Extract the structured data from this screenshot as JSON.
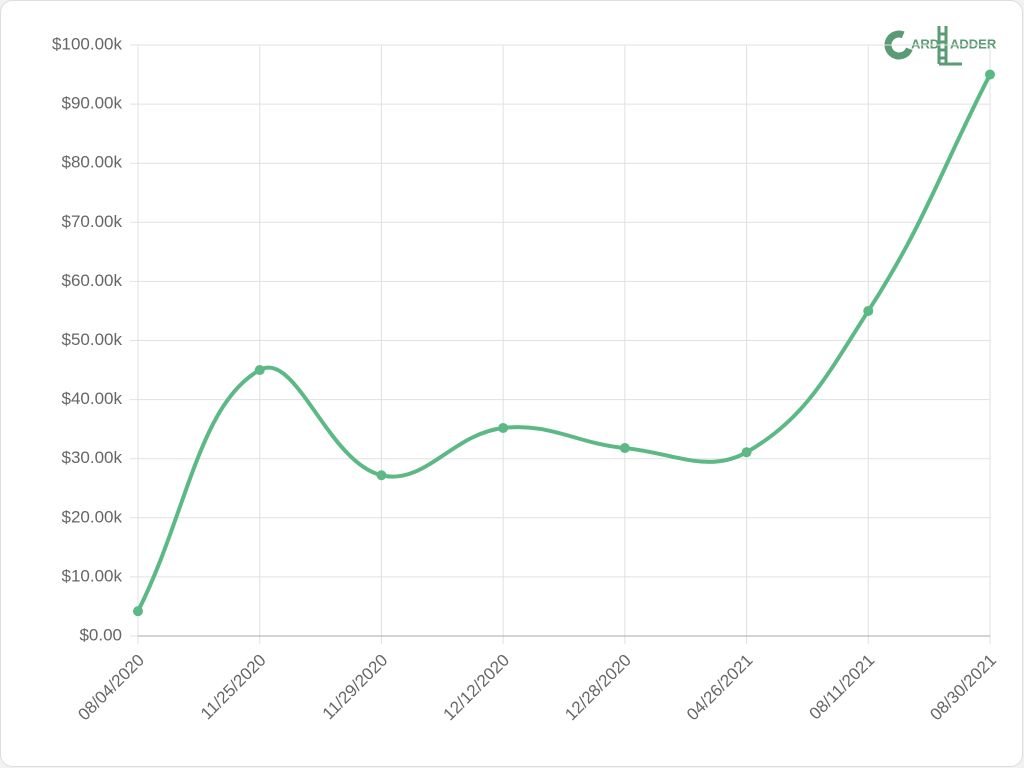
{
  "chart_data": {
    "type": "line",
    "logo": {
      "first": "ARD",
      "second": "ADDER"
    },
    "categories": [
      "08/04/2020",
      "11/25/2020",
      "11/29/2020",
      "12/12/2020",
      "12/28/2020",
      "04/26/2021",
      "08/11/2021",
      "08/30/2021"
    ],
    "values": [
      4200,
      45000,
      27200,
      35200,
      31800,
      31100,
      55000,
      95000
    ],
    "color": "#5cb985",
    "ylim": [
      0,
      100000
    ],
    "yticks": [
      {
        "value": 0,
        "label": "$0.00"
      },
      {
        "value": 10000,
        "label": "$10.00k"
      },
      {
        "value": 20000,
        "label": "$20.00k"
      },
      {
        "value": 30000,
        "label": "$30.00k"
      },
      {
        "value": 40000,
        "label": "$40.00k"
      },
      {
        "value": 50000,
        "label": "$50.00k"
      },
      {
        "value": 60000,
        "label": "$60.00k"
      },
      {
        "value": 70000,
        "label": "$70.00k"
      },
      {
        "value": 80000,
        "label": "$80.00k"
      },
      {
        "value": 90000,
        "label": "$90.00k"
      },
      {
        "value": 100000,
        "label": "$100.00k"
      }
    ],
    "grid": true
  }
}
